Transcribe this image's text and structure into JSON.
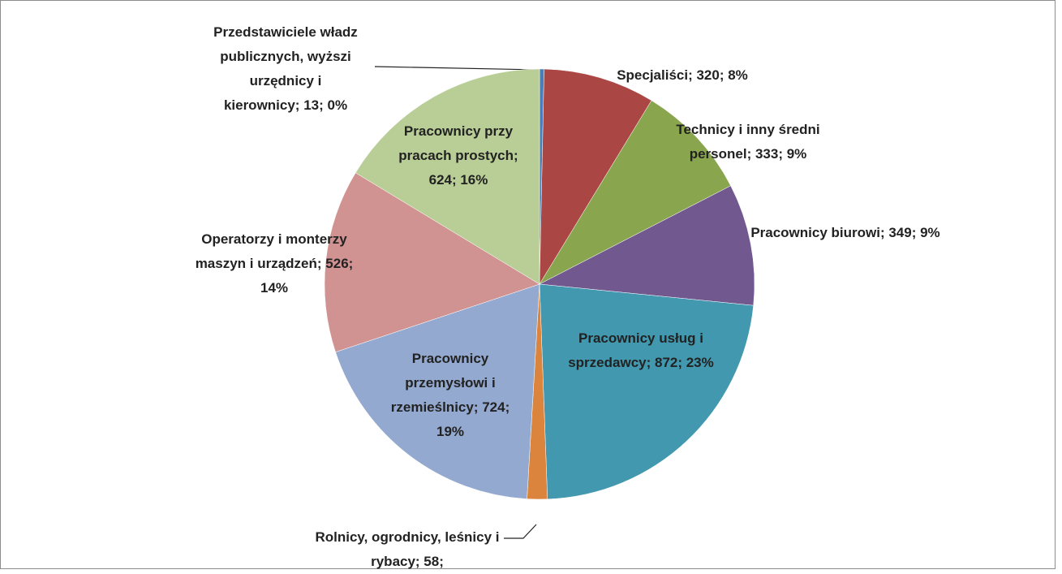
{
  "chart_data": {
    "type": "pie",
    "values": [
      13,
      320,
      333,
      349,
      872,
      58,
      724,
      526,
      624
    ],
    "value_labels": [
      "Przedstawiciele władz publicznych, wyższi urzędnicy i kierownicy; 13; 0%",
      "Specjaliści; 320; 8%",
      "Technicy i inny średni personel; 333; 9%",
      "Pracownicy biurowi; 349; 9%",
      "Pracownicy usług i sprzedawcy; 872; 23%",
      "Rolnicy, ogrodnicy, leśnicy i rybacy; 58;",
      "Pracownicy przemysłowi i rzemieślnicy; 724; 19%",
      "Operatorzy i monterzy maszyn i urządzeń; 526; 14%",
      "Pracownicy przy pracach prostych; 624; 16%"
    ],
    "colors": [
      "#4a7ebb",
      "#aa4643",
      "#89a54e",
      "#71588f",
      "#4198af",
      "#db843d",
      "#93a9cf",
      "#d19392",
      "#b9cd96"
    ]
  }
}
